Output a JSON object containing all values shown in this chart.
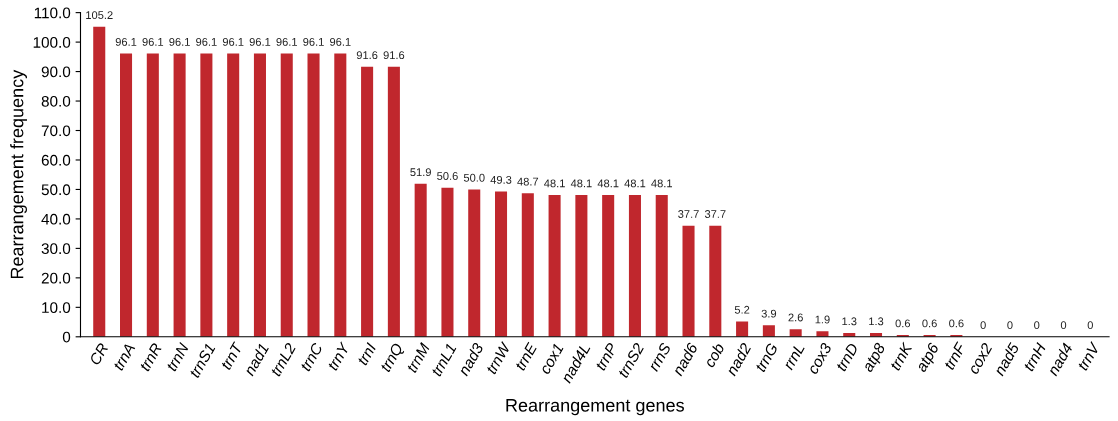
{
  "chart_data": {
    "type": "bar",
    "xlabel": "Rearrangement genes",
    "ylabel": "Rearrangement frequency",
    "categories": [
      "CR",
      "trnA",
      "trnR",
      "trnN",
      "trnS1",
      "trnT",
      "nad1",
      "trnL2",
      "trnC",
      "trnY",
      "trnI",
      "trnQ",
      "trnM",
      "trnL1",
      "nad3",
      "trnW",
      "trnE",
      "cox1",
      "nad4L",
      "trnP",
      "trnS2",
      "rrnS",
      "nad6",
      "cob",
      "nad2",
      "trnG",
      "rrnL",
      "cox3",
      "trnD",
      "atp8",
      "trnK",
      "atp6",
      "trnF",
      "cox2",
      "nad5",
      "trnH",
      "nad4",
      "trnV"
    ],
    "values": [
      105.2,
      96.1,
      96.1,
      96.1,
      96.1,
      96.1,
      96.1,
      96.1,
      96.1,
      96.1,
      91.6,
      91.6,
      51.9,
      50.6,
      50.0,
      49.3,
      48.7,
      48.1,
      48.1,
      48.1,
      48.1,
      48.1,
      37.7,
      37.7,
      5.2,
      3.9,
      2.6,
      1.9,
      1.3,
      1.3,
      0.6,
      0.6,
      0.6,
      0,
      0,
      0,
      0,
      0
    ],
    "value_labels": [
      "105.2",
      "96.1",
      "96.1",
      "96.1",
      "96.1",
      "96.1",
      "96.1",
      "96.1",
      "96.1",
      "96.1",
      "91.6",
      "91.6",
      "51.9",
      "50.6",
      "50.0",
      "49.3",
      "48.7",
      "48.1",
      "48.1",
      "48.1",
      "48.1",
      "48.1",
      "37.7",
      "37.7",
      "5.2",
      "3.9",
      "2.6",
      "1.9",
      "1.3",
      "1.3",
      "0.6",
      "0.6",
      "0.6",
      "0",
      "0",
      "0",
      "0",
      "0"
    ],
    "color": "#c0272d",
    "ylim": [
      0,
      110
    ],
    "yticks": [
      {
        "value": 0,
        "label": "0"
      },
      {
        "value": 10,
        "label": "10.0"
      },
      {
        "value": 20,
        "label": "20.0"
      },
      {
        "value": 30,
        "label": "30.0"
      },
      {
        "value": 40,
        "label": "40.0"
      },
      {
        "value": 50,
        "label": "50.0"
      },
      {
        "value": 60,
        "label": "60.0"
      },
      {
        "value": 70,
        "label": "70.0"
      },
      {
        "value": 80,
        "label": "80.0"
      },
      {
        "value": 90,
        "label": "90.0"
      },
      {
        "value": 100,
        "label": "100.0"
      },
      {
        "value": 110,
        "label": "110.0"
      }
    ]
  }
}
